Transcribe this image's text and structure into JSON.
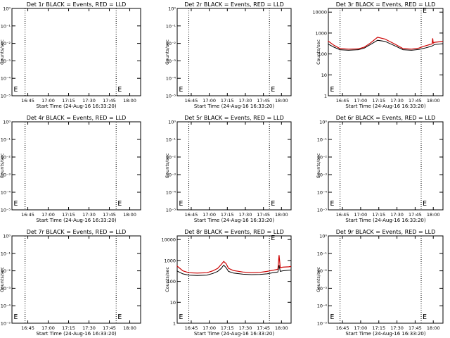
{
  "chart_data": [
    {
      "type": "line",
      "title": "Det 1r BLACK = Events, RED = LLD",
      "xlabel": "Start Time (24-Aug-16 16:33:20)",
      "ylabel": "Counts/sec",
      "log_y": true,
      "x_ticks": [
        "16:45",
        "17:00",
        "17:15",
        "17:30",
        "17:45",
        "18:00"
      ],
      "y_ticks": [
        "10⁰",
        "10⁻¹",
        "10⁻²",
        "10⁻³",
        "10⁻⁴",
        "10⁻⁵"
      ],
      "ylim": [
        1,
        1e-05
      ],
      "dotted_lines_x": [
        "16:43",
        "17:50"
      ],
      "markers": [
        {
          "x": "16:33",
          "label": "E"
        },
        {
          "x": "17:50",
          "label": "E"
        }
      ],
      "series": []
    },
    {
      "type": "line",
      "title": "Det 2r BLACK = Events, RED = LLD",
      "xlabel": "Start Time (24-Aug-16 16:33:20)",
      "ylabel": "Counts/sec",
      "log_y": true,
      "x_ticks": [
        "16:45",
        "17:00",
        "17:15",
        "17:30",
        "17:45",
        "18:00"
      ],
      "y_ticks": [
        "10⁰",
        "10⁻¹",
        "10⁻²",
        "10⁻³",
        "10⁻⁴",
        "10⁻⁵"
      ],
      "ylim": [
        1,
        1e-05
      ],
      "dotted_lines_x": [
        "16:43",
        "17:50"
      ],
      "markers": [
        {
          "x": "16:33",
          "label": "E"
        },
        {
          "x": "17:50",
          "label": "E"
        }
      ],
      "series": []
    },
    {
      "type": "line",
      "title": "Det 3r BLACK = Events, RED = LLD",
      "xlabel": "Start Time (24-Aug-16 16:33:20)",
      "ylabel": "Counts/sec",
      "log_y": true,
      "x_ticks": [
        "16:45",
        "17:00",
        "17:15",
        "17:30",
        "17:45",
        "18:00"
      ],
      "y_ticks": [
        "1",
        "10",
        "100",
        "1000",
        "10000"
      ],
      "ylim": [
        1,
        15000
      ],
      "dotted_lines_x": [
        "16:43",
        "17:50"
      ],
      "markers": [
        {
          "x": "16:33",
          "label": "E"
        },
        {
          "x": "17:50",
          "label": "E"
        }
      ],
      "series": [
        {
          "color": "#000000",
          "x": [
            "16:33",
            "16:38",
            "16:43",
            "16:50",
            "16:58",
            "17:03",
            "17:08",
            "17:14",
            "17:20",
            "17:28",
            "17:35",
            "17:42",
            "17:48",
            "17:53",
            "17:57",
            "17:59",
            "18:01",
            "18:06",
            "18:08"
          ],
          "values": [
            300,
            210,
            160,
            150,
            160,
            190,
            280,
            450,
            400,
            250,
            160,
            150,
            165,
            190,
            220,
            240,
            280,
            300,
            310
          ]
        },
        {
          "color": "#cc0000",
          "x": [
            "16:33",
            "16:38",
            "16:43",
            "16:50",
            "16:58",
            "17:03",
            "17:08",
            "17:14",
            "17:20",
            "17:28",
            "17:35",
            "17:42",
            "17:48",
            "17:53",
            "17:57",
            "17:59",
            "17:59.5",
            "18:00",
            "18:01",
            "18:06",
            "18:08"
          ],
          "values": [
            420,
            260,
            180,
            170,
            175,
            210,
            330,
            630,
            520,
            300,
            180,
            170,
            190,
            240,
            280,
            300,
            560,
            330,
            360,
            390,
            400
          ]
        }
      ]
    },
    {
      "type": "line",
      "title": "Det 4r BLACK = Events, RED = LLD",
      "xlabel": "Start Time (24-Aug-16 16:33:20)",
      "ylabel": "Counts/sec",
      "log_y": true,
      "x_ticks": [
        "16:45",
        "17:00",
        "17:15",
        "17:30",
        "17:45",
        "18:00"
      ],
      "y_ticks": [
        "10⁰",
        "10⁻¹",
        "10⁻²",
        "10⁻³",
        "10⁻⁴",
        "10⁻⁵"
      ],
      "ylim": [
        1,
        1e-05
      ],
      "dotted_lines_x": [
        "16:43",
        "17:50"
      ],
      "markers": [
        {
          "x": "16:33",
          "label": "E"
        },
        {
          "x": "17:50",
          "label": "E"
        }
      ],
      "series": []
    },
    {
      "type": "line",
      "title": "Det 5r BLACK = Events, RED = LLD",
      "xlabel": "Start Time (24-Aug-16 16:33:20)",
      "ylabel": "Counts/sec",
      "log_y": true,
      "x_ticks": [
        "16:45",
        "17:00",
        "17:15",
        "17:30",
        "17:45",
        "18:00"
      ],
      "y_ticks": [
        "10⁰",
        "10⁻¹",
        "10⁻²",
        "10⁻³",
        "10⁻⁴",
        "10⁻⁵"
      ],
      "ylim": [
        1,
        1e-05
      ],
      "dotted_lines_x": [
        "16:43",
        "17:50"
      ],
      "markers": [
        {
          "x": "16:33",
          "label": "E"
        },
        {
          "x": "17:50",
          "label": "E"
        }
      ],
      "series": []
    },
    {
      "type": "line",
      "title": "Det 6r BLACK = Events, RED = LLD",
      "xlabel": "Start Time (24-Aug-16 16:33:20)",
      "ylabel": "Counts/sec",
      "log_y": true,
      "x_ticks": [
        "16:45",
        "17:00",
        "17:15",
        "17:30",
        "17:45",
        "18:00"
      ],
      "y_ticks": [
        "10⁰",
        "10⁻¹",
        "10⁻²",
        "10⁻³",
        "10⁻⁴",
        "10⁻⁵"
      ],
      "ylim": [
        1,
        1e-05
      ],
      "dotted_lines_x": [
        "16:43",
        "17:50"
      ],
      "markers": [
        {
          "x": "16:33",
          "label": "E"
        },
        {
          "x": "17:50",
          "label": "E"
        }
      ],
      "series": []
    },
    {
      "type": "line",
      "title": "Det 7r BLACK = Events, RED = LLD",
      "xlabel": "Start Time (24-Aug-16 16:33:20)",
      "ylabel": "Counts/sec",
      "log_y": true,
      "x_ticks": [
        "16:45",
        "17:00",
        "17:15",
        "17:30",
        "17:45",
        "18:00"
      ],
      "y_ticks": [
        "10⁰",
        "10⁻¹",
        "10⁻²",
        "10⁻³",
        "10⁻⁴",
        "10⁻⁵"
      ],
      "ylim": [
        1,
        1e-05
      ],
      "dotted_lines_x": [
        "16:43",
        "17:50"
      ],
      "markers": [
        {
          "x": "16:33",
          "label": "E"
        },
        {
          "x": "17:50",
          "label": "E"
        }
      ],
      "series": []
    },
    {
      "type": "line",
      "title": "Det 8r BLACK = Events, RED = LLD",
      "xlabel": "Start Time (24-Aug-16 16:33:20)",
      "ylabel": "Counts/sec",
      "log_y": true,
      "x_ticks": [
        "16:45",
        "17:00",
        "17:15",
        "17:30",
        "17:45",
        "18:00"
      ],
      "y_ticks": [
        "1",
        "10",
        "100",
        "1000",
        "10000"
      ],
      "ylim": [
        1,
        15000
      ],
      "dotted_lines_x": [
        "16:43",
        "17:50"
      ],
      "markers": [
        {
          "x": "16:33",
          "label": "E"
        },
        {
          "x": "17:50",
          "label": "E"
        }
      ],
      "series": [
        {
          "color": "#000000",
          "x": [
            "16:33",
            "16:38",
            "16:43",
            "16:50",
            "16:58",
            "17:03",
            "17:07",
            "17:10",
            "17:12",
            "17:14",
            "17:16",
            "17:20",
            "17:28",
            "17:35",
            "17:42",
            "17:48",
            "17:53",
            "17:57",
            "17:58",
            "17:59",
            "18:01",
            "18:06",
            "18:08"
          ],
          "values": [
            320,
            230,
            200,
            190,
            200,
            240,
            300,
            420,
            600,
            450,
            300,
            250,
            220,
            210,
            215,
            230,
            260,
            280,
            600,
            300,
            320,
            340,
            350
          ]
        },
        {
          "color": "#cc0000",
          "x": [
            "16:33",
            "16:38",
            "16:43",
            "16:50",
            "16:58",
            "17:03",
            "17:07",
            "17:10",
            "17:12",
            "17:14",
            "17:16",
            "17:20",
            "17:28",
            "17:35",
            "17:42",
            "17:48",
            "17:53",
            "17:57",
            "17:58",
            "17:59",
            "18:01",
            "18:06",
            "18:08"
          ],
          "values": [
            560,
            320,
            260,
            250,
            260,
            320,
            420,
            650,
            900,
            700,
            420,
            330,
            280,
            260,
            270,
            300,
            340,
            380,
            1800,
            450,
            480,
            500,
            520
          ]
        }
      ]
    },
    {
      "type": "line",
      "title": "Det 9r BLACK = Events, RED = LLD",
      "xlabel": "Start Time (24-Aug-16 16:33:20)",
      "ylabel": "Counts/sec",
      "log_y": true,
      "x_ticks": [
        "16:45",
        "17:00",
        "17:15",
        "17:30",
        "17:45",
        "18:00"
      ],
      "y_ticks": [
        "10⁰",
        "10⁻¹",
        "10⁻²",
        "10⁻³",
        "10⁻⁴",
        "10⁻⁵"
      ],
      "ylim": [
        1,
        1e-05
      ],
      "dotted_lines_x": [
        "16:43",
        "17:50"
      ],
      "markers": [
        {
          "x": "16:33",
          "label": "E"
        },
        {
          "x": "17:50",
          "label": "E"
        }
      ],
      "series": []
    }
  ]
}
